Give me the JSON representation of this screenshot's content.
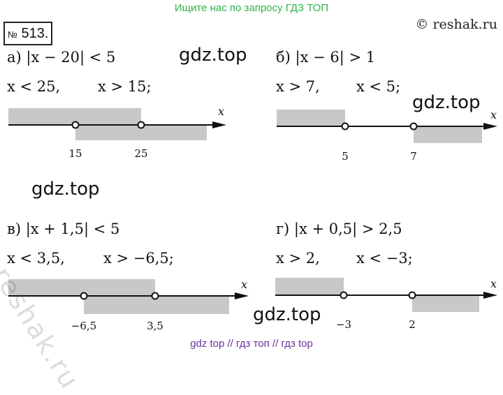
{
  "header": {
    "top_text": "Ищите нас по запросу ГДЗ ТОП",
    "copyright": "© reshak.ru",
    "task_no_sign": "№",
    "task_number": "513."
  },
  "problems": [
    {
      "inequality": "а) |x − 20| < 5",
      "solution_left": "x < 25,",
      "solution_right": "x > 15;",
      "axis_label": "x",
      "ticks": [
        "15",
        "25"
      ]
    },
    {
      "inequality": "б) |x − 6| > 1",
      "solution_left": "x > 7,",
      "solution_right": "x < 5;",
      "axis_label": "x",
      "ticks": [
        "5",
        "7"
      ]
    },
    {
      "inequality": "в) |x + 1,5| < 5",
      "solution_left": "x < 3,5,",
      "solution_right": "x > −6,5;",
      "axis_label": "x",
      "ticks": [
        "−6,5",
        "3,5"
      ]
    },
    {
      "inequality": "г) |x + 0,5| > 2,5",
      "solution_left": "x > 2,",
      "solution_right": "x < −3;",
      "axis_label": "x",
      "ticks": [
        "−3",
        "2"
      ]
    }
  ],
  "watermarks": [
    "gdz.top",
    "gdz.top",
    "gdz.top",
    "gdz.top"
  ],
  "diagonal_watermark": "reshak.ru",
  "footer": "gdz top  //  гдз топ  //  гдз top",
  "colors": {
    "shade": "#c8c8c8",
    "top_text": "#2fb34a",
    "footer": "#6b2fa0"
  }
}
